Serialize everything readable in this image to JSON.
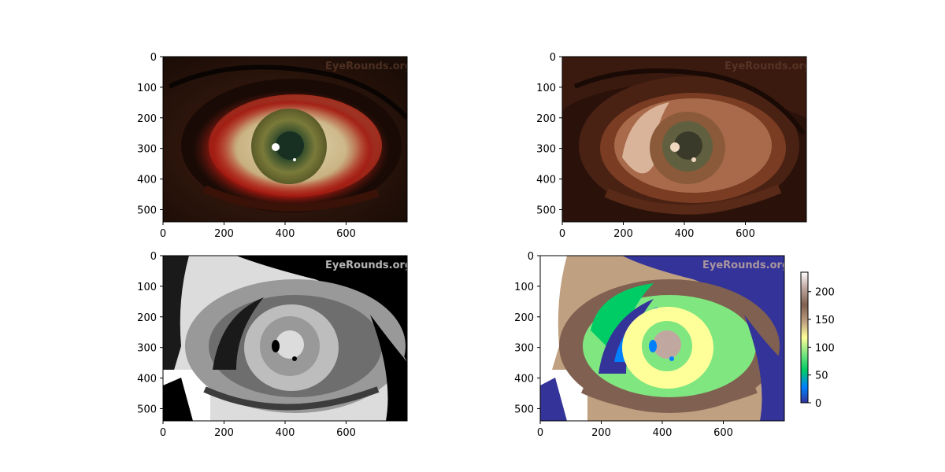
{
  "chart_data": [
    {
      "type": "image",
      "description_key": "original-photo",
      "xticks": [
        "0",
        "200",
        "400",
        "600"
      ],
      "yticks": [
        "0",
        "100",
        "200",
        "300",
        "400",
        "500"
      ],
      "xlim": [
        0,
        800
      ],
      "ylim": [
        540,
        0
      ],
      "watermark": "EyeRounds.org",
      "palette": [
        "#2a140b",
        "#5a1c10",
        "#b02018",
        "#d8d0a8",
        "#7a7a3a",
        "#1f3a28",
        "#ffffff"
      ]
    },
    {
      "type": "image",
      "description_key": "color-quantized",
      "xticks": [
        "0",
        "200",
        "400",
        "600"
      ],
      "yticks": [
        "0",
        "100",
        "200",
        "300",
        "400",
        "500"
      ],
      "xlim": [
        0,
        800
      ],
      "ylim": [
        540,
        0
      ],
      "watermark": "EyeRounds.org",
      "palette": [
        "#2a120a",
        "#4a2214",
        "#7a3c22",
        "#a86a4a",
        "#d9b49a",
        "#f0d8c0",
        "#3a3a2a",
        "#606040"
      ]
    },
    {
      "type": "image",
      "description_key": "grayscale-levels",
      "xticks": [
        "0",
        "200",
        "400",
        "600"
      ],
      "yticks": [
        "0",
        "100",
        "200",
        "300",
        "400",
        "500"
      ],
      "xlim": [
        0,
        800
      ],
      "ylim": [
        540,
        0
      ],
      "watermark": "EyeRounds.org",
      "palette": [
        "#000000",
        "#3c3c3c",
        "#6e6e6e",
        "#999999",
        "#bdbdbd",
        "#dcdcdc",
        "#ffffff"
      ]
    },
    {
      "type": "heatmap",
      "description_key": "terrain-colormap",
      "xticks": [
        "0",
        "200",
        "400",
        "600"
      ],
      "yticks": [
        "0",
        "100",
        "200",
        "300",
        "400",
        "500"
      ],
      "xlim": [
        0,
        800
      ],
      "ylim": [
        540,
        0
      ],
      "watermark": "EyeRounds.org",
      "colorbar": {
        "ticks": [
          "0",
          "50",
          "100",
          "150",
          "200"
        ],
        "range": [
          0,
          235
        ],
        "colormap": "terrain",
        "stops": [
          "#333399",
          "#0080ff",
          "#00cc66",
          "#80e680",
          "#ffff99",
          "#bfa080",
          "#806050",
          "#c0a8a0",
          "#ffffff"
        ]
      }
    }
  ]
}
